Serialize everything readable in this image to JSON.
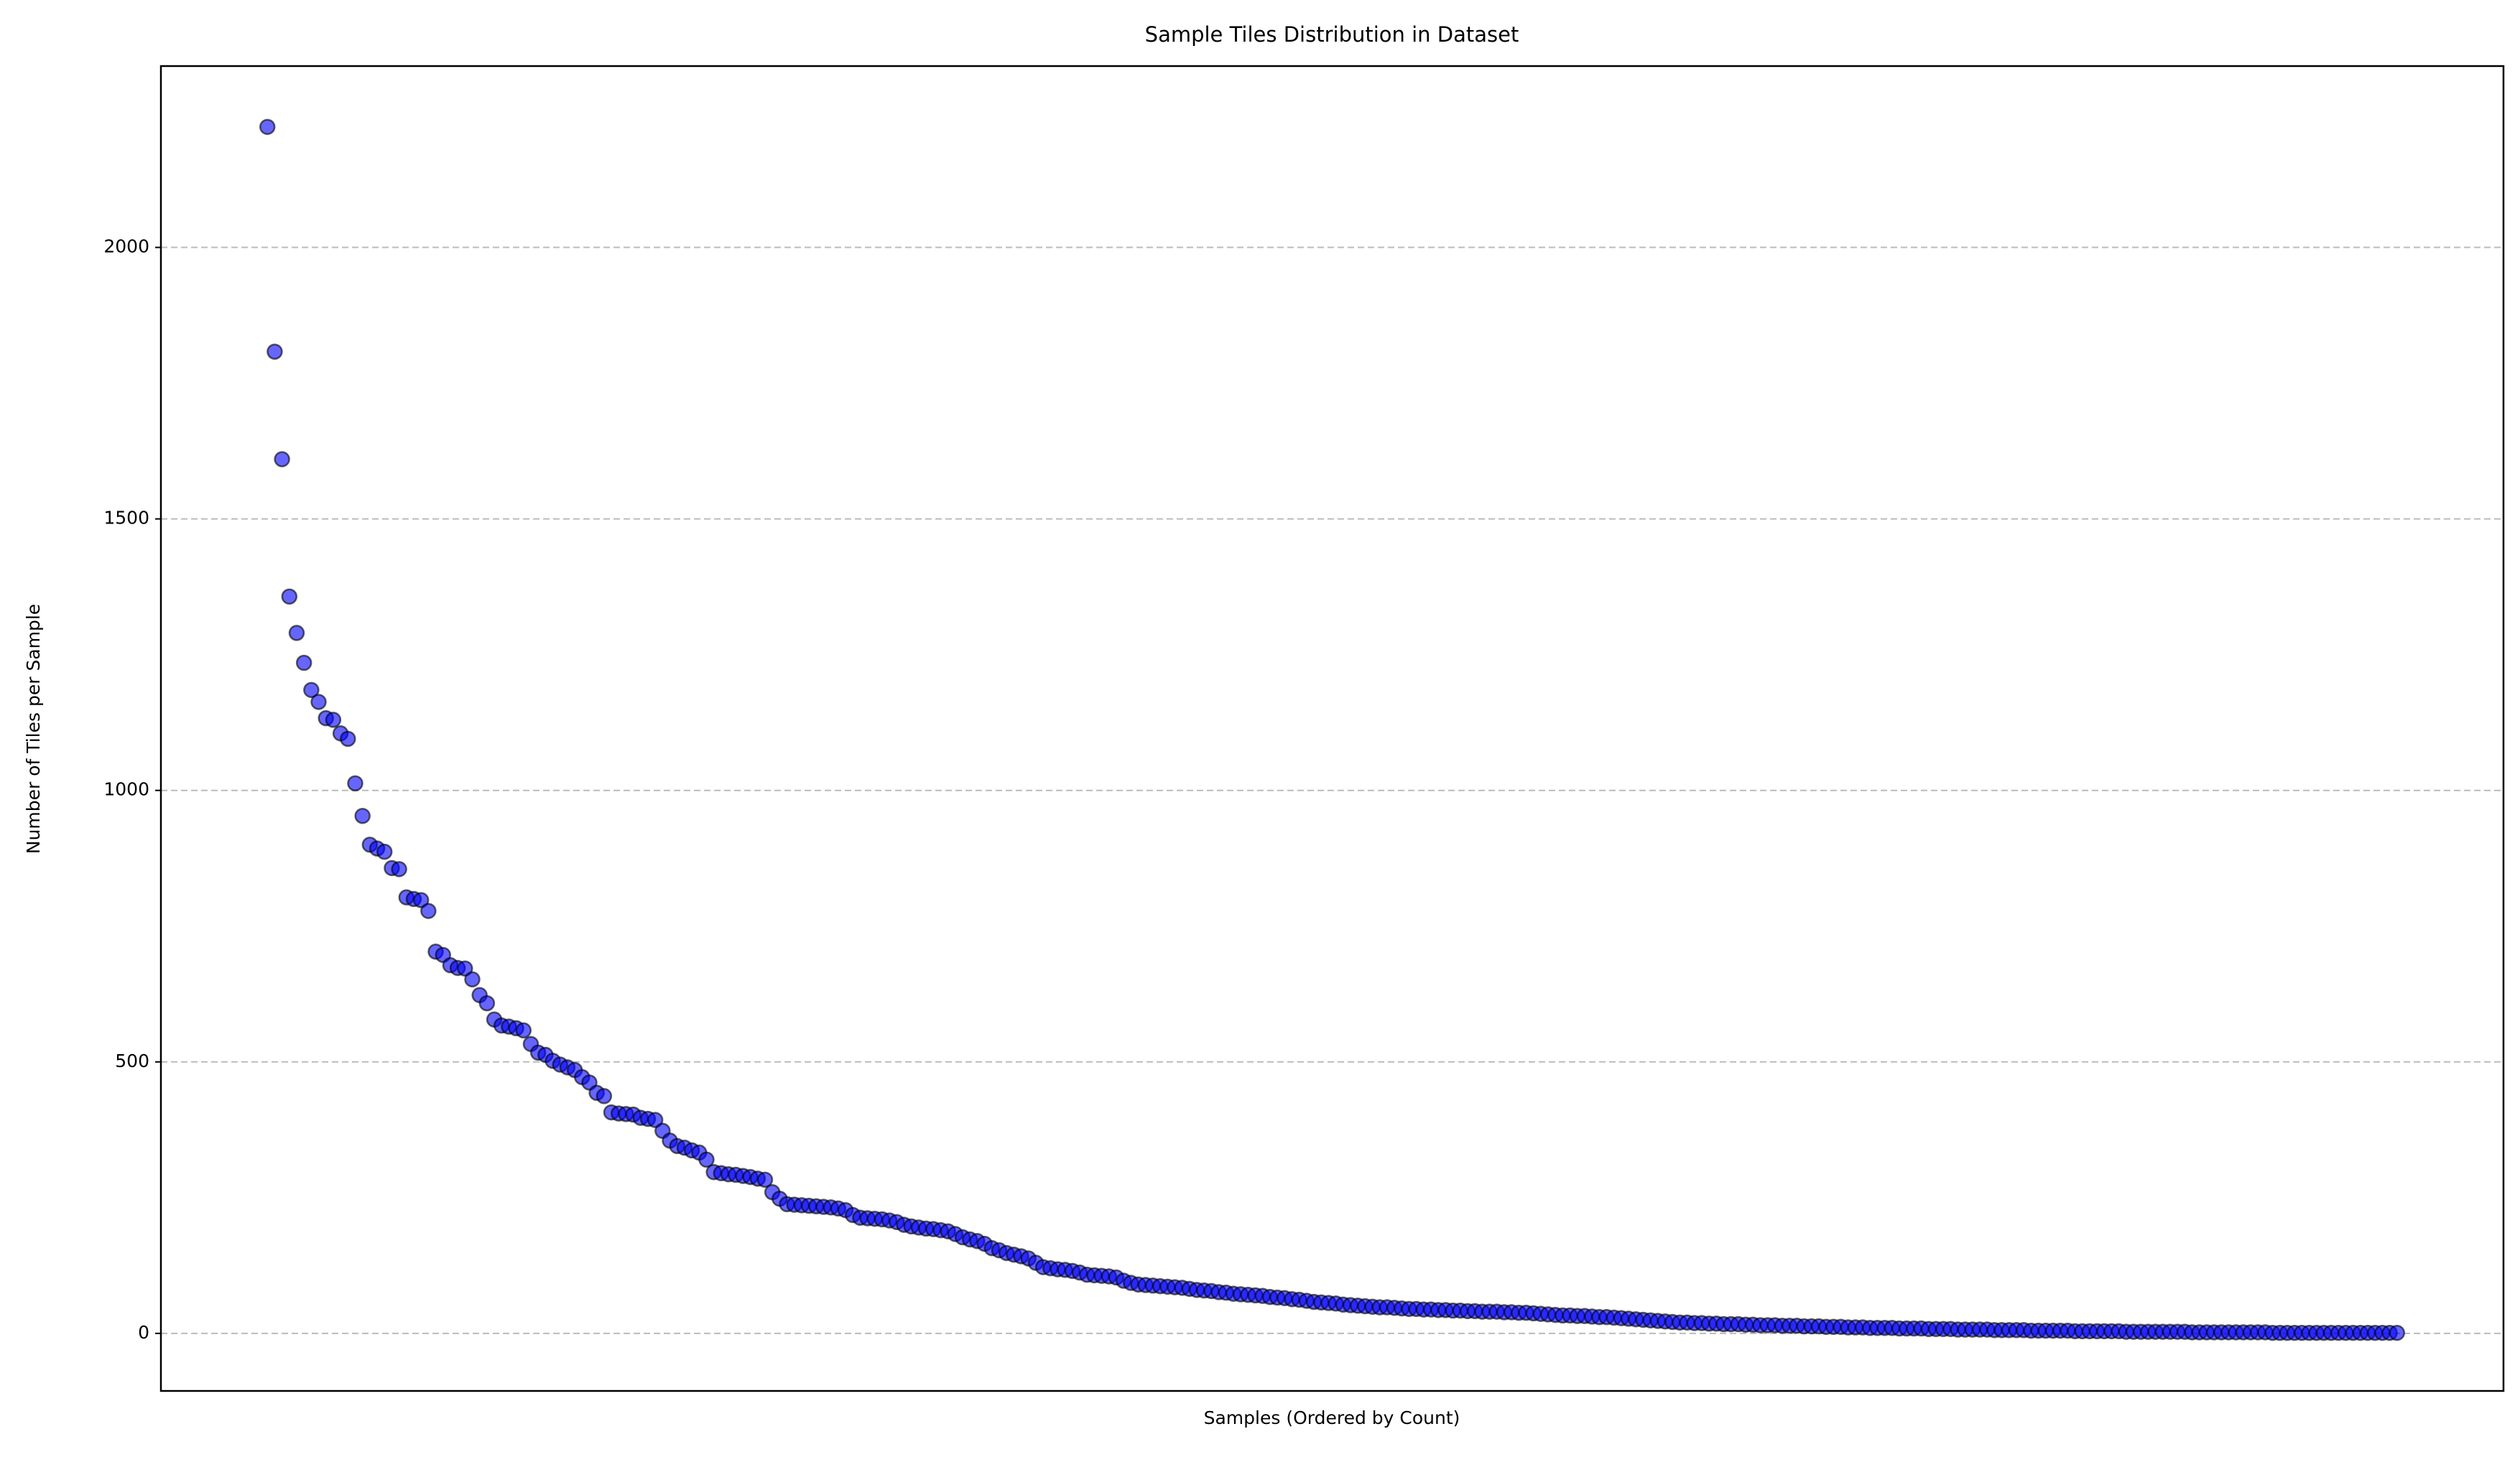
{
  "chart_data": {
    "type": "scatter",
    "title": "Sample Tiles Distribution in Dataset",
    "x_label": "Samples (Ordered by Count)",
    "y_label": "Number of Tiles per Sample",
    "color": "#0000ff",
    "edge_color": "#000000",
    "alpha": 0.6,
    "grid": true,
    "ylim": [
      -106,
      2334
    ],
    "yticks": [
      0,
      500,
      1000,
      1500,
      2000
    ],
    "values": [
      2222,
      1808,
      1610,
      1357,
      1290,
      1235,
      1185,
      1163,
      1133,
      1130,
      1105,
      1095,
      1013,
      953,
      900,
      893,
      887,
      857,
      855,
      803,
      800,
      798,
      778,
      703,
      697,
      678,
      673,
      672,
      652,
      623,
      608,
      578,
      567,
      565,
      562,
      558,
      533,
      517,
      513,
      502,
      495,
      490,
      485,
      472,
      462,
      443,
      437,
      407,
      405,
      404,
      403,
      397,
      395,
      393,
      373,
      355,
      345,
      342,
      337,
      333,
      320,
      297,
      295,
      293,
      292,
      290,
      288,
      285,
      283,
      260,
      248,
      238,
      237,
      236,
      235,
      234,
      233,
      232,
      230,
      227,
      218,
      213,
      212,
      211,
      210,
      208,
      205,
      200,
      197,
      195,
      193,
      192,
      190,
      188,
      183,
      177,
      173,
      170,
      165,
      157,
      153,
      148,
      145,
      142,
      138,
      130,
      122,
      120,
      118,
      117,
      115,
      112,
      108,
      107,
      106,
      105,
      103,
      97,
      93,
      90,
      89,
      88,
      87,
      86,
      85,
      84,
      82,
      80,
      79,
      78,
      76,
      75,
      73,
      72,
      71,
      70,
      69,
      67,
      66,
      65,
      63,
      62,
      60,
      58,
      57,
      56,
      55,
      53,
      52,
      51,
      50,
      49,
      48,
      48,
      47,
      46,
      45,
      45,
      44,
      44,
      43,
      43,
      42,
      42,
      41,
      41,
      40,
      40,
      40,
      39,
      39,
      38,
      38,
      37,
      36,
      35,
      34,
      33,
      33,
      32,
      32,
      31,
      30,
      30,
      29,
      28,
      27,
      26,
      25,
      24,
      23,
      22,
      21,
      20,
      20,
      19,
      19,
      18,
      18,
      17,
      17,
      17,
      16,
      16,
      15,
      15,
      15,
      14,
      14,
      14,
      13,
      13,
      13,
      12,
      12,
      12,
      11,
      11,
      11,
      10,
      10,
      10,
      10,
      9,
      9,
      9,
      9,
      8,
      8,
      8,
      8,
      7,
      7,
      7,
      7,
      7,
      6,
      6,
      6,
      6,
      6,
      5,
      5,
      5,
      5,
      5,
      5,
      4,
      4,
      4,
      4,
      4,
      4,
      4,
      3,
      3,
      3,
      3,
      3,
      3,
      3,
      3,
      3,
      2,
      2,
      2,
      2,
      2,
      2,
      2,
      2,
      2,
      2,
      2,
      1,
      1,
      1,
      1,
      1,
      1,
      1,
      1,
      1,
      1,
      1,
      1,
      1,
      1,
      1,
      1,
      1,
      1
    ]
  }
}
